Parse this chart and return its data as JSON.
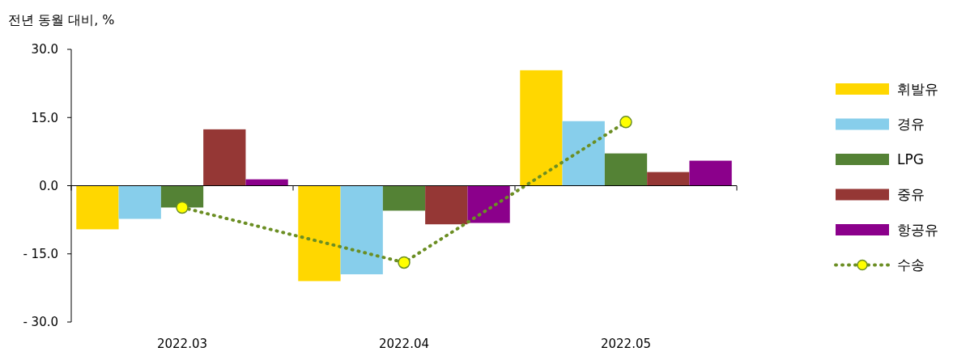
{
  "chart_data": {
    "type": "bar",
    "ylabel": "전년 동월 대비, %",
    "categories": [
      "2022.03",
      "2022.04",
      "2022.05"
    ],
    "ylim": [
      -30,
      30
    ],
    "yticks": [
      {
        "value": -30,
        "label": "- 30.0"
      },
      {
        "value": -15,
        "label": "- 15.0"
      },
      {
        "value": 0,
        "label": "0.0"
      },
      {
        "value": 15,
        "label": "15.0"
      },
      {
        "value": 30,
        "label": "30.0"
      }
    ],
    "legend": "right",
    "series": [
      {
        "name": "휘발유",
        "color": "#ffd700",
        "values": [
          -9.6,
          -21.0,
          25.4
        ]
      },
      {
        "name": "경유",
        "color": "#87ceeb",
        "values": [
          -7.3,
          -19.5,
          14.2
        ]
      },
      {
        "name": "LPG",
        "color": "#548235",
        "values": [
          -4.8,
          -5.5,
          7.1
        ]
      },
      {
        "name": "중유",
        "color": "#953735",
        "values": [
          12.4,
          -8.5,
          3.0
        ]
      },
      {
        "name": "항공유",
        "color": "#8b008b",
        "values": [
          1.4,
          -8.2,
          5.5
        ]
      },
      {
        "name": "수송",
        "type": "line",
        "color": "#6b8e23",
        "values": [
          -4.8,
          -16.9,
          14.0
        ],
        "marker": "circle",
        "line_style": "dotted"
      }
    ]
  }
}
